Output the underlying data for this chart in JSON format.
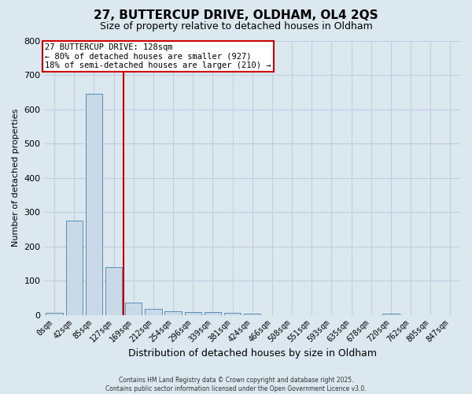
{
  "title": "27, BUTTERCUP DRIVE, OLDHAM, OL4 2QS",
  "subtitle": "Size of property relative to detached houses in Oldham",
  "xlabel": "Distribution of detached houses by size in Oldham",
  "ylabel": "Number of detached properties",
  "bar_labels": [
    "0sqm",
    "42sqm",
    "85sqm",
    "127sqm",
    "169sqm",
    "212sqm",
    "254sqm",
    "296sqm",
    "339sqm",
    "381sqm",
    "424sqm",
    "466sqm",
    "508sqm",
    "551sqm",
    "593sqm",
    "635sqm",
    "678sqm",
    "720sqm",
    "762sqm",
    "805sqm",
    "847sqm"
  ],
  "bar_values": [
    5,
    275,
    645,
    140,
    35,
    18,
    10,
    8,
    8,
    6,
    3,
    0,
    0,
    0,
    0,
    0,
    0,
    4,
    0,
    0,
    0
  ],
  "bar_color": "#c9d9e8",
  "bar_edge_color": "#5b8db8",
  "grid_color": "#c0cfe0",
  "background_color": "#dce8f0",
  "red_line_x": 3.5,
  "red_line_color": "#cc0000",
  "annotation_lines": [
    "27 BUTTERCUP DRIVE: 128sqm",
    "← 80% of detached houses are smaller (927)",
    "18% of semi-detached houses are larger (210) →"
  ],
  "annotation_box_color": "#ffffff",
  "annotation_box_edge": "#cc0000",
  "ylim": [
    0,
    800
  ],
  "yticks": [
    0,
    100,
    200,
    300,
    400,
    500,
    600,
    700,
    800
  ],
  "footer_line1": "Contains HM Land Registry data © Crown copyright and database right 2025.",
  "footer_line2": "Contains public sector information licensed under the Open Government Licence v3.0."
}
